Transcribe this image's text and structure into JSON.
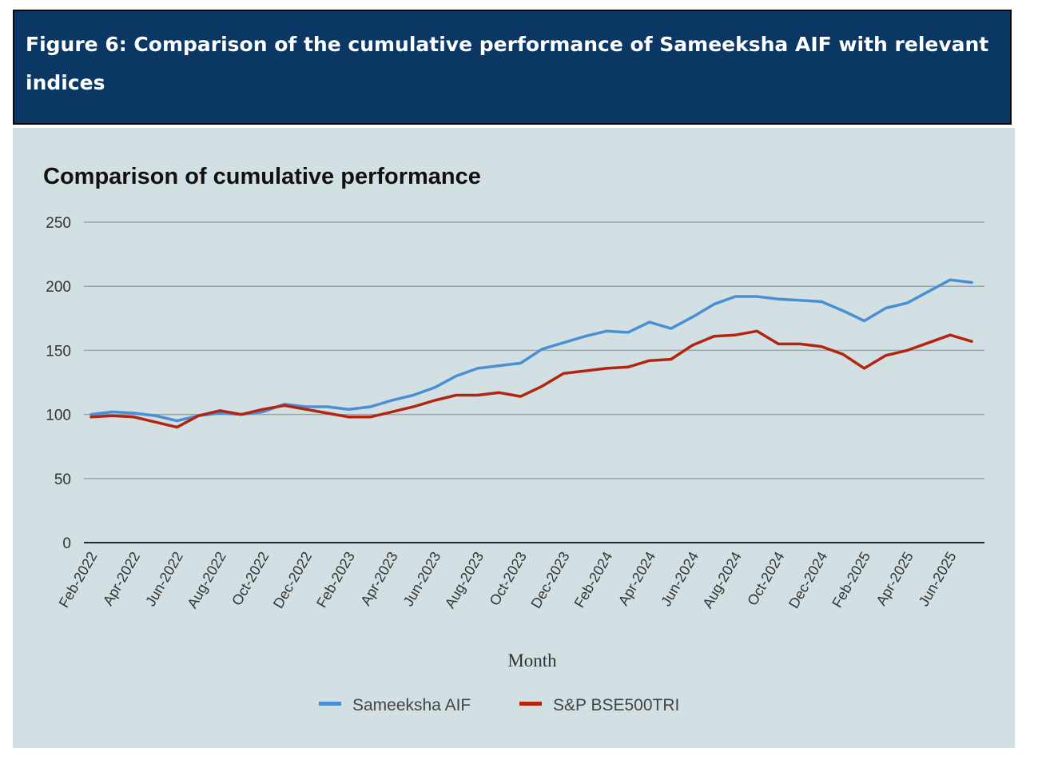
{
  "figure": {
    "title": "Figure 6: Comparison of the cumulative performance of Sameeksha AIF with relevant indices"
  },
  "colors": {
    "header_bg": "#0b3764",
    "panel_bg": "#d2e0e4",
    "series_1": "#4a8fd4",
    "series_2": "#b3250f",
    "grid": "#9aa6a8"
  },
  "chart_data": {
    "type": "line",
    "title": "Comparison of cumulative performance",
    "xlabel": "Month",
    "ylabel": "",
    "ylim": [
      0,
      250
    ],
    "yticks": [
      0,
      50,
      100,
      150,
      200,
      250
    ],
    "grid": true,
    "legend_position": "bottom",
    "categories": [
      "Feb-2022",
      "Mar-2022",
      "Apr-2022",
      "May-2022",
      "Jun-2022",
      "Jul-2022",
      "Aug-2022",
      "Sep-2022",
      "Oct-2022",
      "Nov-2022",
      "Dec-2022",
      "Jan-2023",
      "Feb-2023",
      "Mar-2023",
      "Apr-2023",
      "May-2023",
      "Jun-2023",
      "Jul-2023",
      "Aug-2023",
      "Sep-2023",
      "Oct-2023",
      "Nov-2023",
      "Dec-2023",
      "Jan-2024",
      "Feb-2024",
      "Mar-2024",
      "Apr-2024",
      "May-2024",
      "Jun-2024",
      "Jul-2024",
      "Aug-2024",
      "Sep-2024",
      "Oct-2024",
      "Nov-2024",
      "Dec-2024",
      "Jan-2025",
      "Feb-2025",
      "Mar-2025",
      "Apr-2025",
      "May-2025",
      "Jun-2025",
      "Jul-2025"
    ],
    "tick_labels": [
      "Feb-2022",
      "Apr-2022",
      "Jun-2022",
      "Aug-2022",
      "Oct-2022",
      "Dec-2022",
      "Feb-2023",
      "Apr-2023",
      "Jun-2023",
      "Aug-2023",
      "Oct-2023",
      "Dec-2023",
      "Feb-2024",
      "Apr-2024",
      "Jun-2024",
      "Aug-2024",
      "Oct-2024",
      "Dec-2024",
      "Feb-2025",
      "Apr-2025",
      "Jun-2025"
    ],
    "series": [
      {
        "name": "Sameeksha AIF",
        "values": [
          100,
          102,
          101,
          99,
          95,
          99,
          101,
          100,
          102,
          108,
          106,
          106,
          104,
          106,
          111,
          115,
          121,
          130,
          136,
          138,
          140,
          151,
          156,
          161,
          165,
          164,
          172,
          167,
          176,
          186,
          192,
          192,
          190,
          189,
          188,
          181,
          173,
          183,
          187,
          196,
          205,
          203
        ]
      },
      {
        "name": "S&P BSE500TRI",
        "values": [
          98,
          99,
          98,
          94,
          90,
          99,
          103,
          100,
          104,
          107,
          104,
          101,
          98,
          98,
          102,
          106,
          111,
          115,
          115,
          117,
          114,
          122,
          132,
          134,
          136,
          137,
          142,
          143,
          154,
          161,
          162,
          165,
          155,
          155,
          153,
          147,
          136,
          146,
          150,
          156,
          162,
          157
        ]
      }
    ]
  }
}
